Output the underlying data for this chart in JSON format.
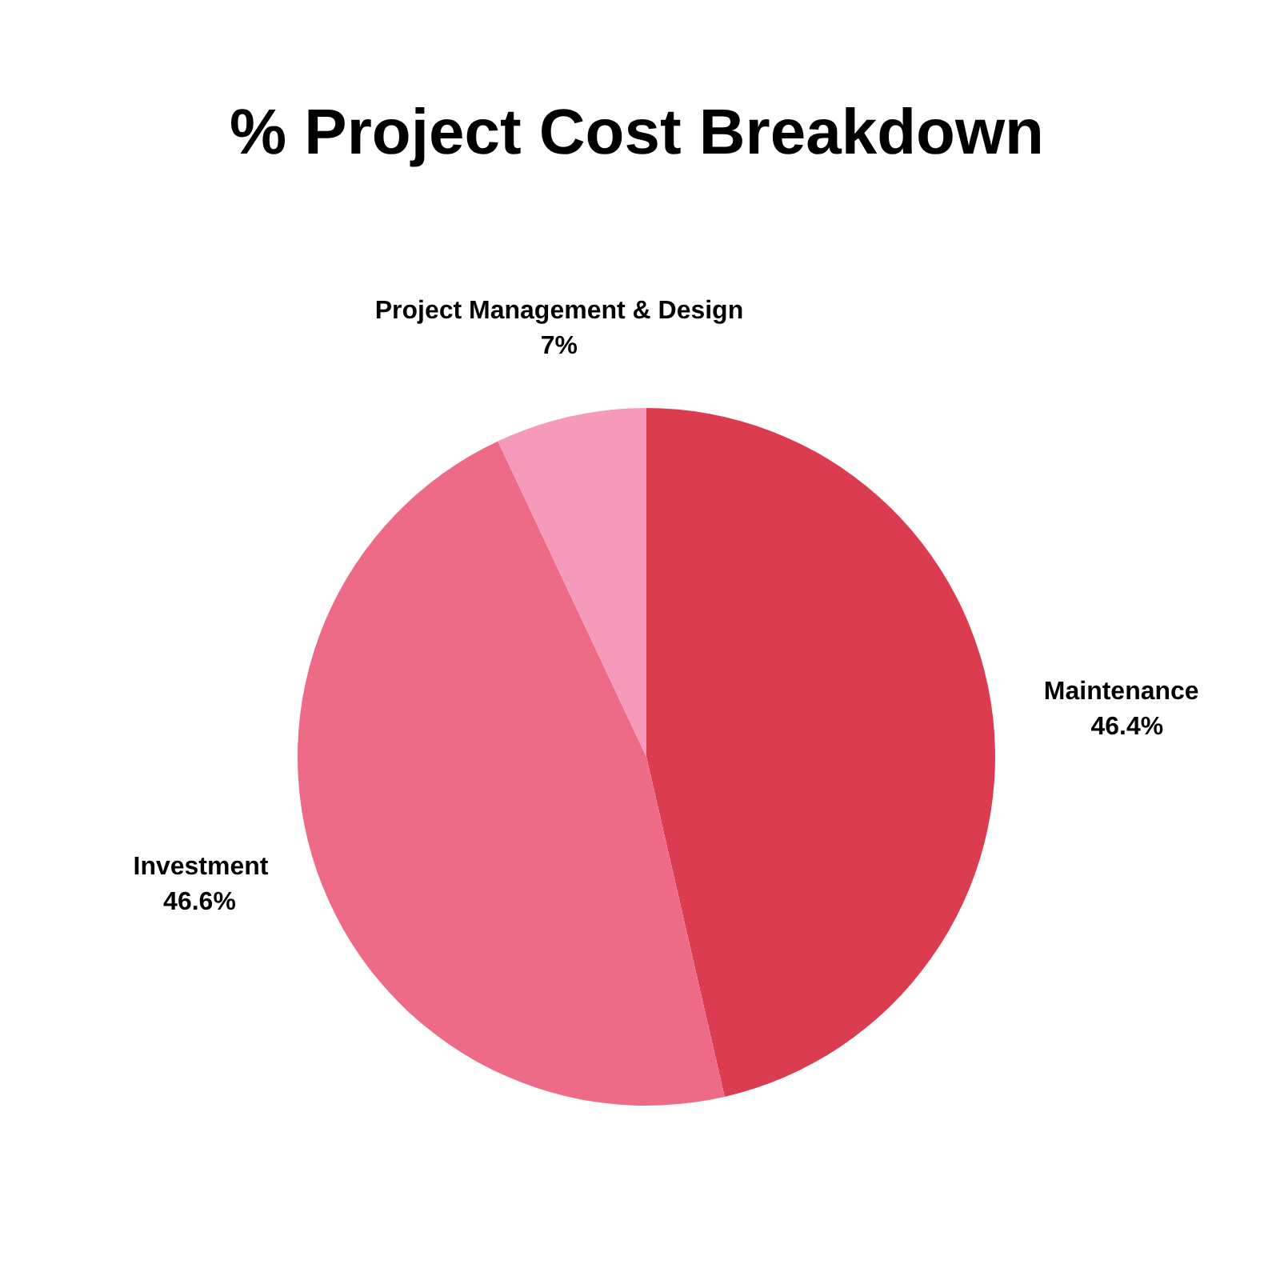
{
  "chart_data": {
    "type": "pie",
    "title": "% Project Cost Breakdown",
    "categories": [
      "Maintenance",
      "Investment",
      "Project Management & Design"
    ],
    "values": [
      46.4,
      46.6,
      7
    ],
    "value_labels": [
      "46.4%",
      "46.6%",
      "7%"
    ],
    "colors": [
      "#dc3c50",
      "#ee6b88",
      "#f59abb"
    ]
  }
}
